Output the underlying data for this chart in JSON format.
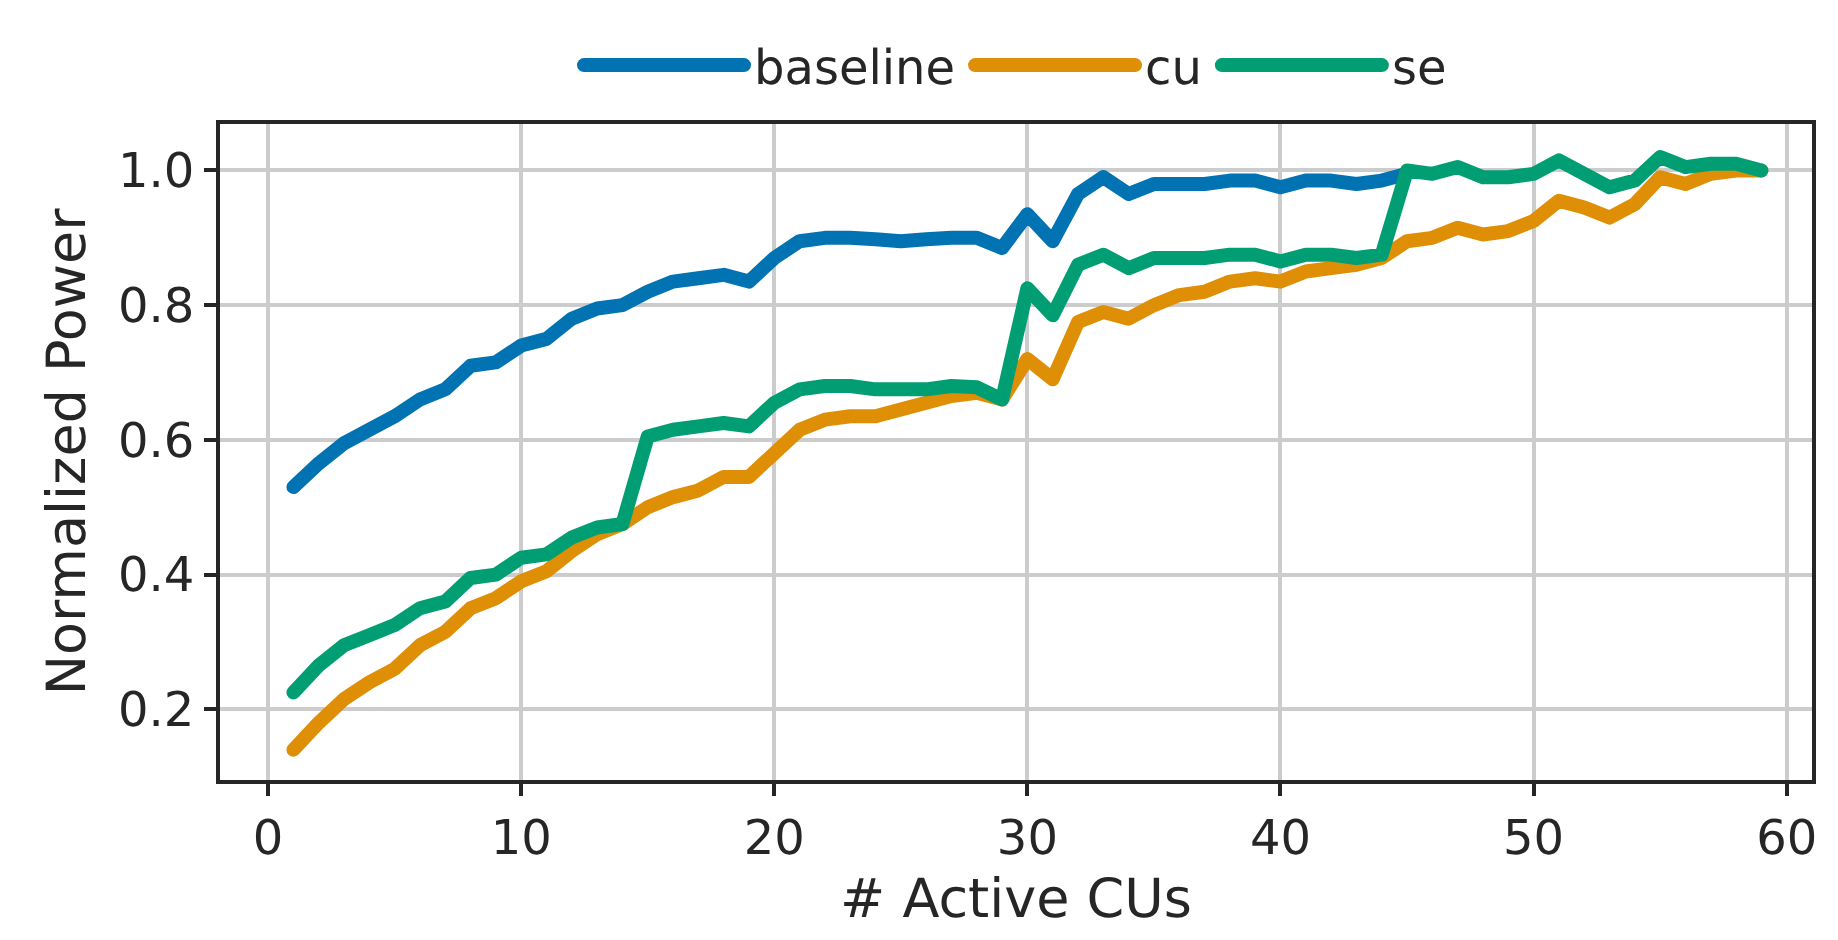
{
  "chart_data": {
    "type": "line",
    "xlabel": "# Active CUs",
    "ylabel": "Normalized Power",
    "x": [
      1,
      2,
      3,
      4,
      5,
      6,
      7,
      8,
      9,
      10,
      11,
      12,
      13,
      14,
      15,
      16,
      17,
      18,
      19,
      20,
      21,
      22,
      23,
      24,
      25,
      26,
      27,
      28,
      29,
      30,
      31,
      32,
      33,
      34,
      35,
      36,
      37,
      38,
      39,
      40,
      41,
      42,
      43,
      44,
      45,
      46,
      47,
      48,
      49,
      50,
      51,
      52,
      53,
      54,
      55,
      56,
      57,
      58,
      59
    ],
    "series": [
      {
        "name": "baseline",
        "color": "#0173b2",
        "values": [
          0.53,
          0.565,
          0.595,
          0.615,
          0.635,
          0.66,
          0.675,
          0.71,
          0.715,
          0.74,
          0.75,
          0.78,
          0.795,
          0.8,
          0.82,
          0.835,
          0.84,
          0.845,
          0.835,
          0.87,
          0.895,
          0.9,
          0.9,
          0.898,
          0.895,
          0.898,
          0.9,
          0.9,
          0.885,
          0.935,
          0.895,
          0.965,
          0.99,
          0.965,
          0.98,
          0.98,
          0.98,
          0.985,
          0.985,
          0.975,
          0.985,
          0.985,
          0.98,
          0.985,
          0.995,
          null,
          null,
          null,
          null,
          null,
          null,
          null,
          null,
          null,
          null,
          null,
          null,
          null,
          null
        ]
      },
      {
        "name": "cu",
        "color": "#de8f05",
        "values": [
          0.14,
          0.18,
          0.215,
          0.24,
          0.26,
          0.295,
          0.315,
          0.35,
          0.365,
          0.39,
          0.405,
          0.435,
          0.46,
          0.475,
          0.5,
          0.515,
          0.525,
          0.545,
          0.545,
          0.58,
          0.615,
          0.63,
          0.635,
          0.635,
          0.645,
          0.655,
          0.665,
          0.67,
          0.66,
          0.72,
          0.69,
          0.775,
          0.79,
          0.78,
          0.8,
          0.815,
          0.82,
          0.835,
          0.84,
          0.835,
          0.85,
          0.855,
          0.86,
          0.87,
          0.895,
          0.9,
          0.915,
          0.905,
          0.91,
          0.925,
          0.955,
          0.945,
          0.93,
          0.95,
          0.99,
          0.98,
          0.995,
          1.0,
          1.0
        ]
      },
      {
        "name": "se",
        "color": "#029e73",
        "values": [
          0.225,
          0.265,
          0.295,
          0.31,
          0.325,
          0.35,
          0.36,
          0.395,
          0.4,
          0.425,
          0.43,
          0.455,
          0.47,
          0.475,
          0.605,
          0.615,
          0.62,
          0.625,
          0.62,
          0.655,
          0.675,
          0.68,
          0.68,
          0.675,
          0.675,
          0.675,
          0.68,
          0.678,
          0.66,
          0.825,
          0.785,
          0.86,
          0.875,
          0.855,
          0.87,
          0.87,
          0.87,
          0.875,
          0.875,
          0.865,
          0.875,
          0.875,
          0.87,
          0.875,
          1.0,
          0.995,
          1.005,
          0.99,
          0.99,
          0.995,
          1.015,
          0.995,
          0.975,
          0.985,
          1.02,
          1.005,
          1.01,
          1.01,
          1.0
        ]
      }
    ],
    "xlim": [
      -1.9,
      61
    ],
    "xticks": [
      0,
      10,
      20,
      30,
      40,
      50,
      60
    ],
    "ylim": [
      0.095,
      1.069
    ],
    "yticks": [
      0.2,
      0.4,
      0.6,
      0.8,
      {
        "value": 1.0,
        "label": "1.0"
      }
    ],
    "grid": true,
    "legend": "top",
    "line_style": "solid",
    "marker": "none"
  }
}
